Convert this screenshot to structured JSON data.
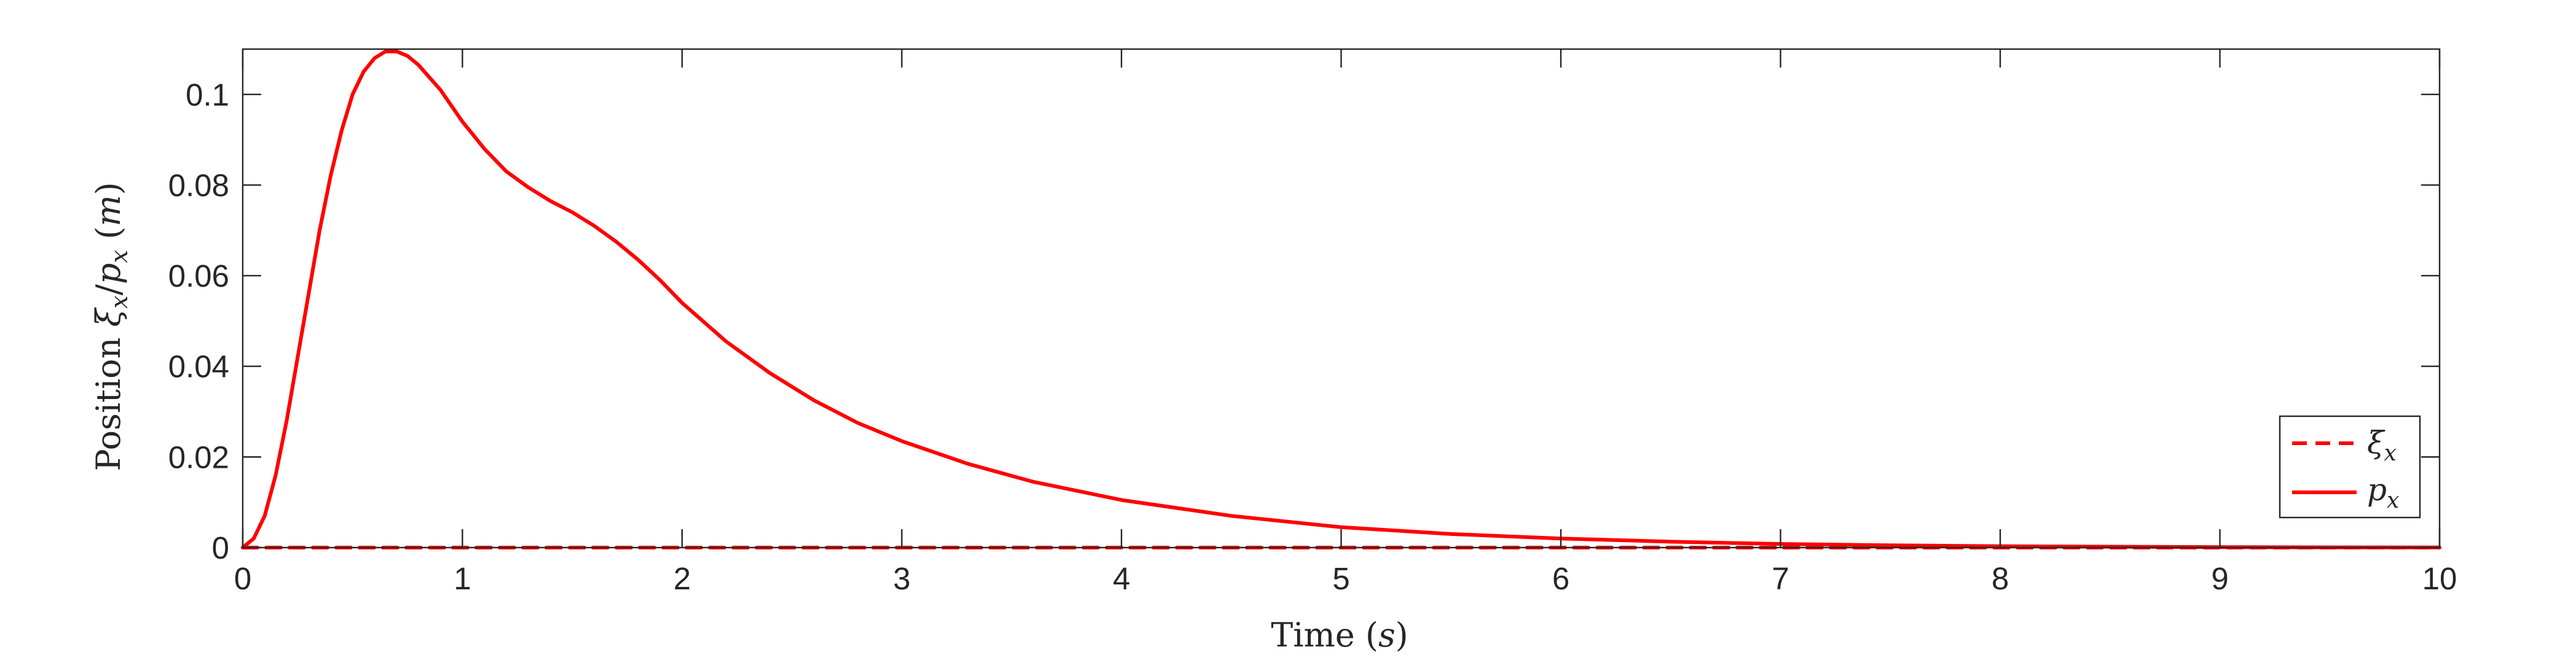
{
  "chart_data": {
    "type": "line",
    "xlabel": "Time (s)",
    "ylabel": "Position ξx/px (m)",
    "xlim": [
      0,
      10
    ],
    "ylim": [
      0,
      0.11
    ],
    "xticks": [
      0,
      1,
      2,
      3,
      4,
      5,
      6,
      7,
      8,
      9,
      10
    ],
    "xtick_labels": [
      "0",
      "1",
      "2",
      "3",
      "4",
      "5",
      "6",
      "7",
      "8",
      "9",
      "10"
    ],
    "yticks": [
      0,
      0.02,
      0.04,
      0.06,
      0.08,
      0.1
    ],
    "ytick_labels": [
      "0",
      "0.02",
      "0.04",
      "0.06",
      "0.08",
      "0.1"
    ],
    "grid": false,
    "legend_position": "bottom-right",
    "series": [
      {
        "name": "ξx",
        "color": "#ff0000",
        "style": "dashed",
        "x": [
          0,
          10
        ],
        "y": [
          0,
          0
        ]
      },
      {
        "name": "px",
        "color": "#ff0000",
        "style": "solid",
        "x": [
          0,
          0.05,
          0.1,
          0.15,
          0.2,
          0.25,
          0.3,
          0.35,
          0.4,
          0.45,
          0.5,
          0.55,
          0.6,
          0.65,
          0.7,
          0.75,
          0.8,
          0.9,
          1.0,
          1.1,
          1.2,
          1.3,
          1.4,
          1.5,
          1.6,
          1.7,
          1.8,
          1.9,
          2.0,
          2.2,
          2.4,
          2.6,
          2.8,
          3.0,
          3.3,
          3.6,
          4.0,
          4.5,
          5.0,
          5.5,
          6.0,
          6.5,
          7.0,
          7.5,
          8.0,
          8.5,
          9.0,
          9.5,
          10.0
        ],
        "y": [
          0,
          0.002,
          0.007,
          0.016,
          0.028,
          0.042,
          0.056,
          0.07,
          0.082,
          0.092,
          0.1,
          0.105,
          0.108,
          0.1095,
          0.1095,
          0.1085,
          0.1065,
          0.101,
          0.094,
          0.088,
          0.083,
          0.0795,
          0.0765,
          0.074,
          0.071,
          0.0675,
          0.0635,
          0.059,
          0.054,
          0.0455,
          0.0385,
          0.0325,
          0.0275,
          0.0235,
          0.0185,
          0.0145,
          0.0105,
          0.007,
          0.0045,
          0.003,
          0.002,
          0.0013,
          0.0008,
          0.0005,
          0.0003,
          0.0002,
          0.0001,
          5e-05,
          3e-05
        ]
      }
    ]
  }
}
